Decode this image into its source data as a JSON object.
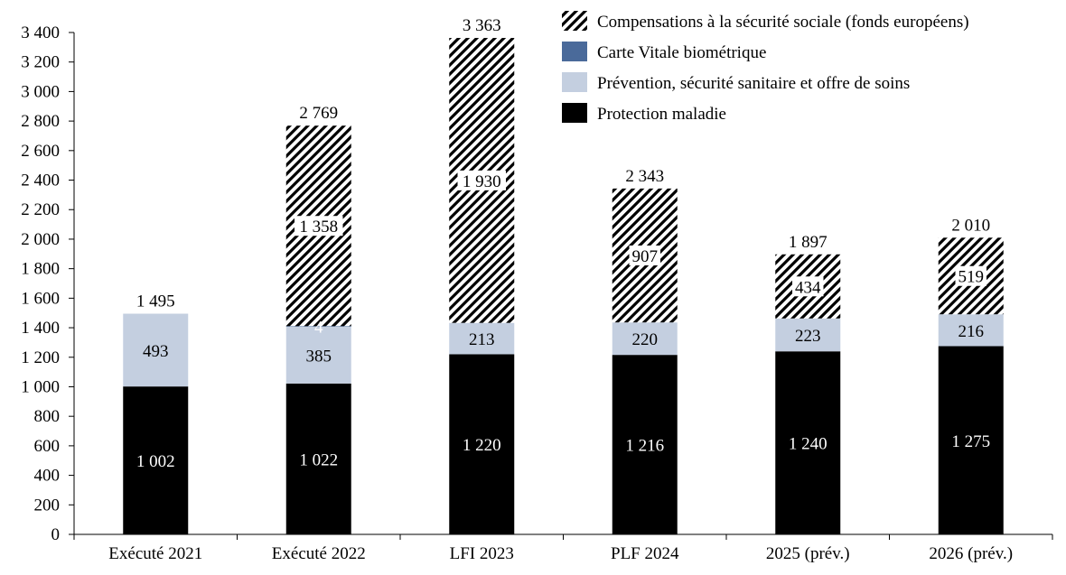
{
  "chart_data": {
    "type": "bar",
    "stacked": true,
    "categories": [
      "Exécuté 2021",
      "Exécuté 2022",
      "LFI 2023",
      "PLF 2024",
      "2025 (prév.)",
      "2026 (prév.)"
    ],
    "series": [
      {
        "name": "Protection maladie",
        "color": "#000000",
        "pattern": "solid",
        "values": [
          1002,
          1022,
          1220,
          1216,
          1240,
          1275
        ],
        "labels": [
          "1 002",
          "1 022",
          "1 220",
          "1 216",
          "1 240",
          "1 275"
        ]
      },
      {
        "name": "Prévention, sécurité sanitaire et offre de soins",
        "color": "#c4cfe0",
        "pattern": "solid",
        "values": [
          493,
          385,
          213,
          220,
          223,
          216
        ],
        "labels": [
          "493",
          "385",
          "213",
          "220",
          "223",
          "216"
        ]
      },
      {
        "name": "Carte Vitale biométrique",
        "color": "#4a6a9a",
        "pattern": "solid",
        "values": [
          0,
          4,
          0,
          0,
          0,
          0
        ],
        "labels": [
          "",
          "4",
          "",
          "",
          "",
          ""
        ]
      },
      {
        "name": "Compensations à la sécurité sociale (fonds européens)",
        "color": "#000000",
        "pattern": "diagonal-hatch",
        "values": [
          0,
          1358,
          1930,
          907,
          434,
          519
        ],
        "labels": [
          "",
          "1 358",
          "1 930",
          "907",
          "434",
          "519"
        ]
      }
    ],
    "totals": [
      1495,
      2769,
      3363,
      2343,
      1897,
      2010
    ],
    "total_labels": [
      "1 495",
      "2 769",
      "3 363",
      "2 343",
      "1 897",
      "2 010"
    ],
    "ylim": [
      0,
      3400
    ],
    "yticks": [
      0,
      200,
      400,
      600,
      800,
      1000,
      1200,
      1400,
      1600,
      1800,
      2000,
      2200,
      2400,
      2600,
      2800,
      3000,
      3200,
      3400
    ],
    "ytick_labels": [
      "0",
      "200",
      "400",
      "600",
      "800",
      "1 000",
      "1 200",
      "1 400",
      "1 600",
      "1 800",
      "2 000",
      "2 200",
      "2 400",
      "2 600",
      "2 800",
      "3 000",
      "3 200",
      "3 400"
    ],
    "grid": false,
    "legend_position": "top-right",
    "legend_order": [
      "Compensations à la sécurité sociale (fonds européens)",
      "Carte Vitale biométrique",
      "Prévention, sécurité sanitaire et offre de soins",
      "Protection maladie"
    ],
    "title": "",
    "xlabel": "",
    "ylabel": ""
  }
}
